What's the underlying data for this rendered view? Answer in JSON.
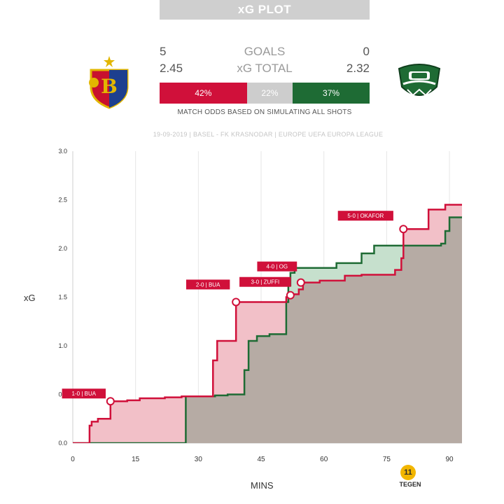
{
  "header": {
    "title": "xG PLOT",
    "home_goals": "5",
    "away_goals": "0",
    "goals_label": "GOALS",
    "home_xg": "2.45",
    "away_xg": "2.32",
    "xg_label": "xG TOTAL",
    "odds": {
      "home": "42%",
      "draw": "22%",
      "away": "37%",
      "home_value": 42,
      "draw_value": 22,
      "away_value": 37
    },
    "odds_note": "MATCH ODDS BASED ON SIMULATING ALL SHOTS",
    "match_info": "19-09-2019 | BASEL - FK KRASNODAR | EUROPE UEFA EUROPA LEAGUE",
    "brand": "TEGEN",
    "brand_icon_text": "11"
  },
  "colors": {
    "home": "#d0103a",
    "home_fill": "#f2c0c8",
    "away": "#1e6b34",
    "away_fill": "#c6e0cd",
    "overlap": "#b6aba4",
    "draw": "#cdcdcd"
  },
  "chart_data": {
    "type": "line",
    "ylabel": "xG",
    "xlabel": "MINS",
    "xlim": [
      0,
      93
    ],
    "ylim": [
      0,
      3.0
    ],
    "xticks": [
      0,
      15,
      30,
      45,
      60,
      75,
      90
    ],
    "yticks": [
      "0.0",
      "0.5",
      "1.0",
      "1.5",
      "2.0",
      "2.5",
      "3.0"
    ],
    "grid": "vertical",
    "series": [
      {
        "team": "home",
        "steps": [
          [
            0,
            0
          ],
          [
            4,
            0.18
          ],
          [
            4.5,
            0.22
          ],
          [
            6,
            0.25
          ],
          [
            9,
            0.43
          ],
          [
            13,
            0.44
          ],
          [
            16,
            0.46
          ],
          [
            22,
            0.47
          ],
          [
            26,
            0.48
          ],
          [
            33.5,
            0.85
          ],
          [
            34.5,
            1.05
          ],
          [
            39,
            1.45
          ],
          [
            51,
            1.5
          ],
          [
            52,
            1.53
          ],
          [
            54,
            1.58
          ],
          [
            55,
            1.65
          ],
          [
            59,
            1.67
          ],
          [
            65,
            1.72
          ],
          [
            69,
            1.73
          ],
          [
            77,
            1.78
          ],
          [
            78.5,
            1.9
          ],
          [
            79,
            2.2
          ],
          [
            85,
            2.4
          ],
          [
            89,
            2.45
          ],
          [
            93,
            2.45
          ]
        ]
      },
      {
        "team": "away",
        "steps": [
          [
            0,
            0
          ],
          [
            26.5,
            0
          ],
          [
            27,
            0.48
          ],
          [
            34,
            0.49
          ],
          [
            37,
            0.5
          ],
          [
            41,
            0.75
          ],
          [
            42,
            1.05
          ],
          [
            44,
            1.1
          ],
          [
            47,
            1.12
          ],
          [
            51,
            1.45
          ],
          [
            51.5,
            1.62
          ],
          [
            52,
            1.75
          ],
          [
            53,
            1.8
          ],
          [
            63,
            1.85
          ],
          [
            69,
            1.95
          ],
          [
            72,
            2.03
          ],
          [
            88,
            2.05
          ],
          [
            89,
            2.18
          ],
          [
            90,
            2.32
          ],
          [
            93,
            2.32
          ]
        ]
      }
    ],
    "annotations": [
      {
        "label": "1-0 | BUA",
        "x": 9,
        "y": 0.43
      },
      {
        "label": "2-0 | BUA",
        "x": 39,
        "y": 1.45
      },
      {
        "label": "3-0 | ZUFFI",
        "x": 52,
        "y": 1.52
      },
      {
        "label": "4-0 | OG",
        "x": 54.5,
        "y": 1.65
      },
      {
        "label": "5-0 | OKAFOR",
        "x": 79,
        "y": 2.2
      }
    ]
  }
}
